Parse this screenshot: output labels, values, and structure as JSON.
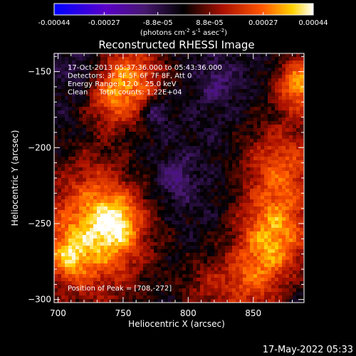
{
  "chart_data": {
    "type": "heatmap",
    "title": "Reconstructed RHESSI Image",
    "xlabel": "Heliocentric X (arcsec)",
    "ylabel": "Heliocentric Y (arcsec)",
    "xlim": [
      697,
      889
    ],
    "ylim": [
      -302,
      -138
    ],
    "x_ticks": [
      700,
      750,
      800,
      850
    ],
    "y_ticks": [
      -150,
      -200,
      -250,
      -300
    ],
    "colorbar": {
      "range": [
        -0.00044,
        0.00044
      ],
      "ticks": [
        -0.00044,
        -0.00027,
        -8.8e-05,
        8.8e-05,
        0.00027,
        0.00044
      ],
      "tick_labels": [
        "-0.00044",
        "-0.00027",
        "-8.8e-05",
        "8.8e-05",
        "0.00027",
        "0.00044"
      ],
      "unit_prefix": "(photons cm",
      "unit_exp1": "-2",
      "unit_mid": " s",
      "unit_exp2": "-1",
      "unit_mid2": " asec",
      "unit_exp3": "-2",
      "unit_suffix": ")"
    },
    "annotations": [
      "17-Oct-2013 05:37:36.000 to 05:43:36.000",
      "Detectors: 3F 4F 5F 6F 7F 8F, Att 0",
      "Energy Range: 12.0 - 25.0 keV",
      "Clean     Total counts: 1.22E+04"
    ],
    "peak_label": "Position of Peak = [708,-272]",
    "peak": [
      708,
      -272
    ],
    "intensity_sources": [
      {
        "x": 726,
        "y": -258,
        "amp": 0.00036,
        "sigma": 30
      },
      {
        "x": 745,
        "y": -249,
        "amp": 0.00022,
        "sigma": 13
      },
      {
        "x": 708,
        "y": -272,
        "amp": 0.00016,
        "sigma": 10
      },
      {
        "x": 756,
        "y": -154,
        "amp": 0.00029,
        "sigma": 19
      },
      {
        "x": 741,
        "y": -170,
        "amp": 0.00016,
        "sigma": 14
      },
      {
        "x": 886,
        "y": -158,
        "amp": 0.00036,
        "sigma": 13
      },
      {
        "x": 872,
        "y": -212,
        "amp": 0.00026,
        "sigma": 22
      },
      {
        "x": 866,
        "y": -259,
        "amp": 0.00034,
        "sigma": 20
      },
      {
        "x": 848,
        "y": -290,
        "amp": 0.0002,
        "sigma": 17
      },
      {
        "x": 813,
        "y": -293,
        "amp": 0.00013,
        "sigma": 16
      },
      {
        "x": 728,
        "y": -216,
        "amp": 6e-05,
        "sigma": 14
      },
      {
        "x": 790,
        "y": -222,
        "amp": -0.00012,
        "sigma": 10
      },
      {
        "x": 775,
        "y": -176,
        "amp": -0.00016,
        "sigma": 7
      },
      {
        "x": 822,
        "y": -157,
        "amp": -9e-05,
        "sigma": 9
      },
      {
        "x": 720,
        "y": -150,
        "amp": -8e-05,
        "sigma": 10
      }
    ],
    "background_level": -4e-05
  },
  "footer": {
    "timestamp": "17-May-2022 05:33"
  }
}
